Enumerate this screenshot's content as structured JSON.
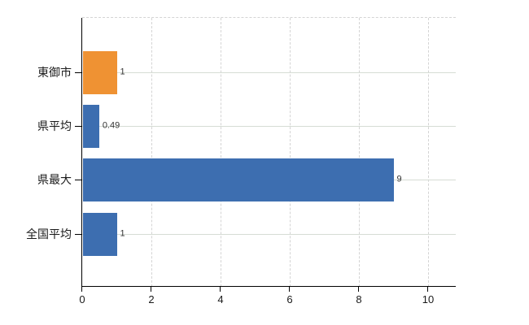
{
  "chart_data": {
    "type": "bar",
    "orientation": "horizontal",
    "title": "",
    "xlabel": "",
    "ylabel": "",
    "categories": [
      "東御市",
      "県平均",
      "県最大",
      "全国平均"
    ],
    "values": [
      1,
      0.49,
      9,
      1
    ],
    "value_labels": [
      "1",
      "0.49",
      "9",
      "1"
    ],
    "series_colors": [
      "#ef9233",
      "#3d6eb0",
      "#3d6eb0",
      "#3d6eb0"
    ],
    "xlim": [
      0,
      10.8
    ],
    "x_ticks": [
      0,
      2,
      4,
      6,
      8,
      10
    ],
    "x_tick_labels": [
      "0",
      "2",
      "4",
      "6",
      "8",
      "10"
    ],
    "grid": {
      "horizontal": "solid",
      "vertical": "dashed"
    },
    "legend": "none"
  },
  "colors": {
    "orange_bar": "#ef9233",
    "blue_bar": "#3d6eb0",
    "grid_horizontal": "#d6dcd4",
    "grid_vertical": "#d4d4d4",
    "axis": "#000000",
    "value_label_text": "#333333",
    "category_label_text": "#1a1a1a",
    "tick_label_text": "#1a1a1a",
    "background": "#ffffff"
  }
}
